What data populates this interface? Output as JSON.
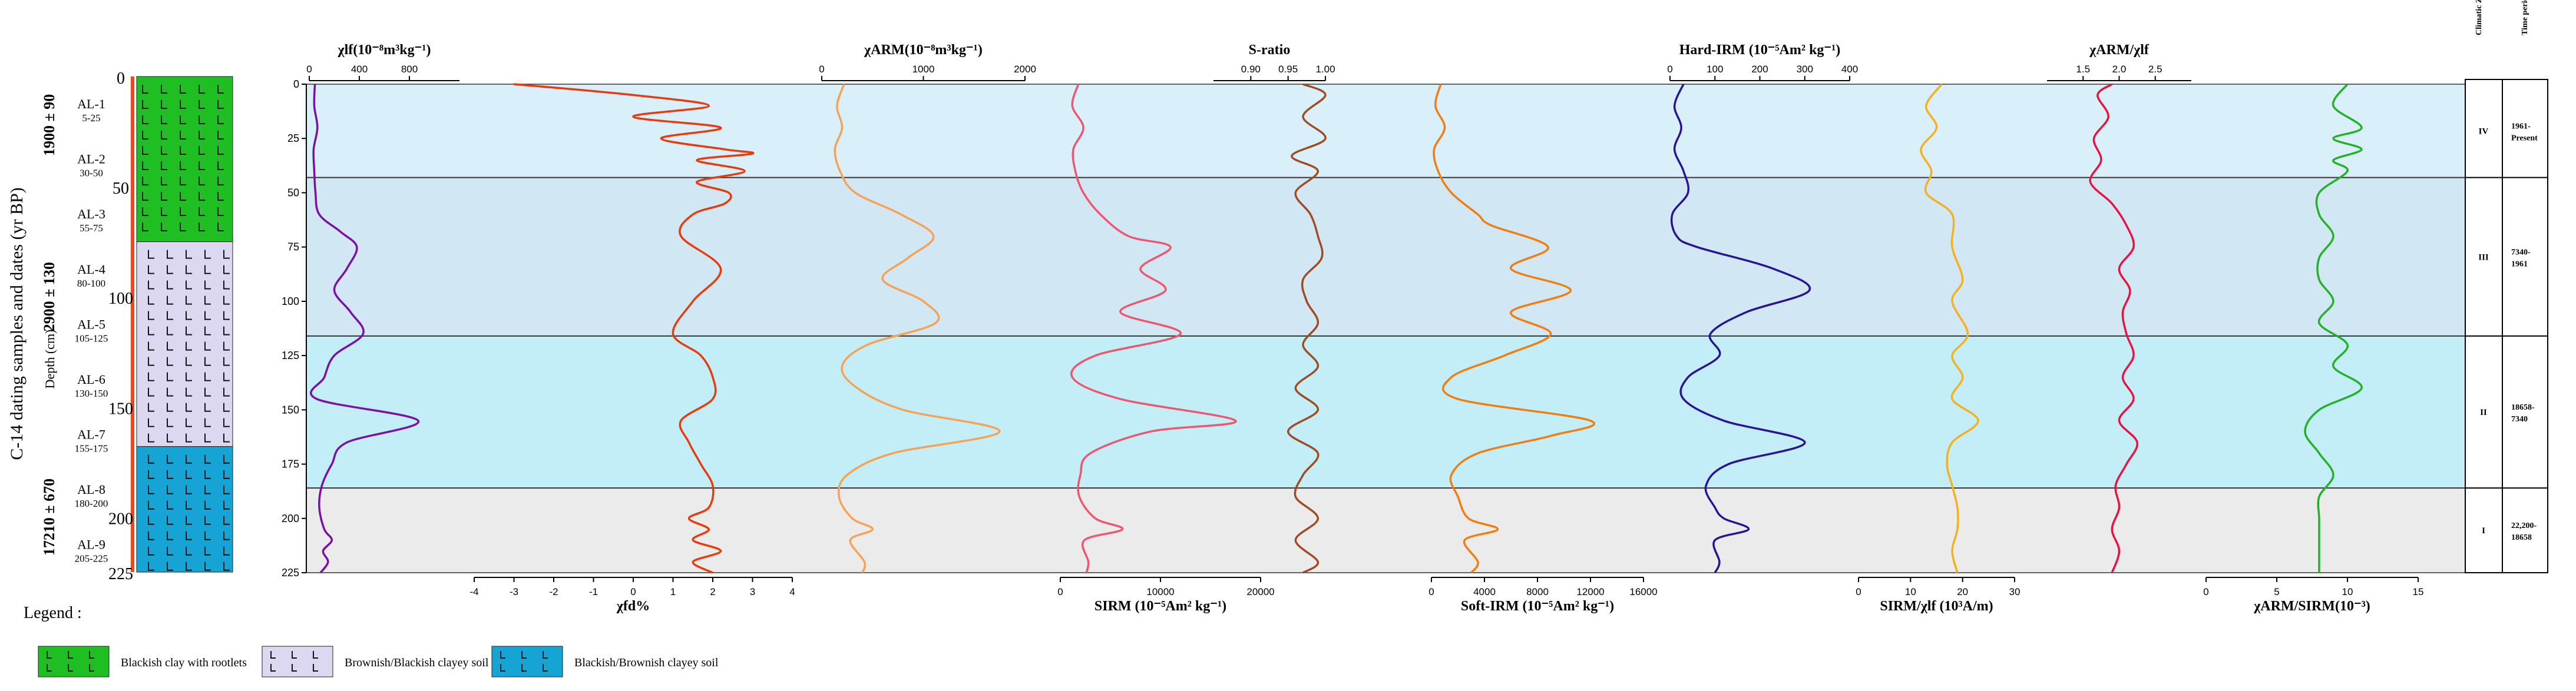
{
  "depth_column": {
    "title": "C-14 dating samples and dates (yr BP)",
    "depth_label": "Depth (cm)",
    "depth_ticks": [
      "0",
      "50",
      "100",
      "150",
      "200",
      "225"
    ],
    "dates": [
      "1900 ± 90",
      "2900 ± 130",
      "17210 ± 670"
    ],
    "samples": [
      {
        "id": "AL-1",
        "range": "5-25"
      },
      {
        "id": "AL-2",
        "range": "30-50"
      },
      {
        "id": "AL-3",
        "range": "55-75"
      },
      {
        "id": "AL-4",
        "range": "80-100"
      },
      {
        "id": "AL-5",
        "range": "105-125"
      },
      {
        "id": "AL-6",
        "range": "130-150"
      },
      {
        "id": "AL-7",
        "range": "155-175"
      },
      {
        "id": "AL-8",
        "range": "180-200"
      },
      {
        "id": "AL-9",
        "range": "205-225"
      }
    ]
  },
  "legend": {
    "title": "Legend :",
    "items": [
      {
        "label": "Blackish clay with rootlets",
        "color": "#1fbf24"
      },
      {
        "label": "Brownish/Blackish clayey soil",
        "color": "#dcd8f2"
      },
      {
        "label": "Blackish/Brownish clayey soil",
        "color": "#16a4d4"
      }
    ]
  },
  "zones_table": {
    "headers": [
      "Climatic Zones",
      "Time period"
    ],
    "rows": [
      {
        "zone": "IV",
        "period": "1961-Present"
      },
      {
        "zone": "III",
        "period": "7340-1961"
      },
      {
        "zone": "II",
        "period": "18658-7340"
      },
      {
        "zone": "I",
        "period": "22,200-18658"
      }
    ]
  },
  "zone_colors": [
    "#d9effa",
    "#d1e7f3",
    "#c3edf7",
    "#ebebeb"
  ],
  "chart_data": {
    "type": "line",
    "y_axis": {
      "label": "Depth (cm)",
      "ticks": [
        0,
        25,
        50,
        75,
        100,
        125,
        150,
        175,
        200,
        225
      ],
      "range": [
        0,
        225
      ],
      "inverted": true
    },
    "zone_boundaries": [
      0,
      43,
      116,
      186,
      225
    ],
    "series": [
      {
        "name": "χlf",
        "label": "χlf(10⁻⁸m³kg⁻¹)",
        "axis": "top",
        "ticks": [
          "0",
          "400",
          "800"
        ],
        "range": [
          0,
          1200
        ],
        "color": "#7b0fa6",
        "depths": [
          0,
          10,
          20,
          30,
          40,
          50,
          60,
          68,
          75,
          85,
          95,
          105,
          115,
          125,
          135,
          145,
          155,
          165,
          175,
          185,
          195,
          205,
          210,
          215,
          220,
          225
        ],
        "values": [
          45,
          40,
          65,
          35,
          40,
          50,
          80,
          250,
          380,
          300,
          200,
          330,
          430,
          200,
          120,
          60,
          870,
          300,
          180,
          100,
          80,
          120,
          180,
          110,
          150,
          90
        ]
      },
      {
        "name": "χfd%",
        "label": "χfd%",
        "axis": "bottom",
        "ticks": [
          "-4",
          "-3",
          "-2",
          "-1",
          "0",
          "1",
          "2",
          "3",
          "4"
        ],
        "range": [
          -4,
          4
        ],
        "color": "#e83a0a",
        "depths": [
          0,
          5,
          10,
          15,
          20,
          25,
          30,
          32,
          35,
          40,
          45,
          50,
          55,
          60,
          70,
          85,
          100,
          115,
          125,
          135,
          145,
          155,
          165,
          175,
          185,
          195,
          200,
          205,
          210,
          215,
          220,
          225
        ],
        "values": [
          -3,
          0,
          1.9,
          0,
          2.2,
          0.7,
          2.3,
          3,
          1.6,
          2.8,
          1.6,
          2.4,
          2.3,
          1.5,
          1.2,
          2.2,
          1.5,
          1,
          1.7,
          2,
          2,
          1.2,
          1.4,
          1.7,
          2,
          1.9,
          1.4,
          1.9,
          1.5,
          2.2,
          1.5,
          2
        ]
      },
      {
        "name": "χARM",
        "label": "χARM(10⁻⁸m³kg⁻¹)",
        "axis": "top",
        "ticks": [
          "0",
          "1000",
          "2000"
        ],
        "range": [
          0,
          2000
        ],
        "color": "#f7a253",
        "depths": [
          0,
          10,
          20,
          30,
          40,
          50,
          60,
          70,
          80,
          90,
          100,
          110,
          120,
          130,
          140,
          150,
          160,
          170,
          180,
          190,
          200,
          205,
          210,
          220,
          225
        ],
        "values": [
          220,
          150,
          200,
          130,
          180,
          330,
          780,
          1100,
          850,
          600,
          1000,
          1120,
          450,
          200,
          350,
          800,
          1750,
          700,
          250,
          170,
          300,
          500,
          280,
          420,
          400
        ]
      },
      {
        "name": "SIRM",
        "label": "SIRM (10⁻⁵Am² kg⁻¹)",
        "axis": "bottom",
        "ticks": [
          "0",
          "10000",
          "20000"
        ],
        "range": [
          0,
          20000
        ],
        "color": "#f0556e",
        "depths": [
          0,
          10,
          20,
          30,
          40,
          50,
          60,
          70,
          75,
          85,
          95,
          105,
          115,
          125,
          135,
          145,
          155,
          160,
          170,
          180,
          190,
          200,
          205,
          210,
          220,
          225
        ],
        "values": [
          1800,
          1200,
          2300,
          1300,
          1500,
          2300,
          4000,
          6800,
          11000,
          8000,
          10500,
          6000,
          12000,
          3500,
          1200,
          6000,
          17500,
          9000,
          3000,
          2000,
          1900,
          3500,
          6200,
          2400,
          2800,
          2600
        ]
      },
      {
        "name": "S-ratio",
        "label": "S-ratio",
        "axis": "top",
        "ticks": [
          "0.90",
          "0.95",
          "1.00"
        ],
        "range": [
          0.85,
          1.0
        ],
        "color": "#a14b25",
        "depths": [
          0,
          5,
          15,
          25,
          33,
          40,
          50,
          60,
          70,
          80,
          90,
          100,
          110,
          120,
          130,
          140,
          150,
          160,
          170,
          180,
          190,
          200,
          210,
          220,
          225
        ],
        "values": [
          0.97,
          1.0,
          0.97,
          1.0,
          0.955,
          0.99,
          0.96,
          0.98,
          0.99,
          0.995,
          0.97,
          0.975,
          0.99,
          0.97,
          0.99,
          0.96,
          0.99,
          0.95,
          0.99,
          0.97,
          0.96,
          0.99,
          0.96,
          0.99,
          0.97
        ]
      },
      {
        "name": "Soft-IRM",
        "label": "Soft-IRM (10⁻⁵Am² kg⁻¹)",
        "axis": "bottom",
        "ticks": [
          "0",
          "4000",
          "8000",
          "12000",
          "16000"
        ],
        "range": [
          0,
          16000
        ],
        "color": "#f27d0c",
        "depths": [
          0,
          10,
          20,
          30,
          40,
          50,
          60,
          65,
          75,
          85,
          95,
          105,
          115,
          125,
          135,
          145,
          155,
          162,
          170,
          180,
          190,
          200,
          205,
          210,
          220,
          225
        ],
        "values": [
          700,
          300,
          1000,
          200,
          500,
          1500,
          3500,
          4500,
          8800,
          6000,
          10500,
          6000,
          9000,
          5500,
          1500,
          2000,
          12000,
          9000,
          3500,
          1500,
          2000,
          2800,
          5000,
          2500,
          3500,
          3000
        ]
      },
      {
        "name": "Hard-IRM",
        "label": "Hard-IRM (10⁻⁵Am² kg⁻¹)",
        "axis": "top",
        "ticks": [
          "0",
          "100",
          "200",
          "300",
          "400"
        ],
        "range": [
          0,
          400
        ],
        "color": "#2a1495",
        "depths": [
          0,
          10,
          20,
          30,
          40,
          50,
          60,
          70,
          75,
          85,
          95,
          105,
          115,
          125,
          135,
          145,
          155,
          165,
          175,
          185,
          195,
          200,
          205,
          210,
          220,
          225
        ],
        "values": [
          30,
          10,
          25,
          10,
          30,
          40,
          5,
          15,
          60,
          230,
          310,
          170,
          90,
          110,
          40,
          30,
          120,
          300,
          130,
          80,
          100,
          120,
          175,
          100,
          110,
          100
        ]
      },
      {
        "name": "SIRM/χlf",
        "label": "SIRM/χlf (10³A/m)",
        "axis": "bottom",
        "ticks": [
          "0",
          "10",
          "20",
          "30"
        ],
        "range": [
          0,
          30
        ],
        "color": "#f5b01c",
        "depths": [
          0,
          10,
          20,
          30,
          40,
          50,
          60,
          75,
          90,
          100,
          115,
          125,
          135,
          145,
          155,
          165,
          175,
          185,
          195,
          205,
          215,
          225
        ],
        "values": [
          16,
          13,
          15,
          12,
          14,
          13,
          18,
          18,
          20,
          18,
          21,
          18,
          20,
          18,
          23,
          18,
          17,
          18,
          19,
          19,
          18,
          19
        ]
      },
      {
        "name": "χARM/χlf",
        "label": "χARM/χlf",
        "axis": "top",
        "ticks": [
          "1.5",
          "2.0",
          "2.5"
        ],
        "range": [
          1.0,
          3.0
        ],
        "color": "#e8123f",
        "depths": [
          0,
          5,
          15,
          25,
          35,
          45,
          55,
          65,
          75,
          85,
          95,
          105,
          115,
          125,
          135,
          145,
          155,
          165,
          175,
          185,
          195,
          205,
          215,
          225
        ],
        "values": [
          1.9,
          1.7,
          1.85,
          1.65,
          1.75,
          1.6,
          1.9,
          2.1,
          2.2,
          2.0,
          2.15,
          2.05,
          2.1,
          2.2,
          2.05,
          2.2,
          2.0,
          2.25,
          2.1,
          1.95,
          2.0,
          1.9,
          2.0,
          1.9
        ]
      },
      {
        "name": "χARM/SIRM",
        "label": "χARM/SIRM(10⁻³)",
        "axis": "bottom",
        "ticks": [
          "0",
          "5",
          "10",
          "15"
        ],
        "range": [
          0,
          15
        ],
        "color": "#23b226",
        "depths": [
          0,
          10,
          20,
          25,
          30,
          35,
          40,
          50,
          60,
          70,
          80,
          90,
          100,
          110,
          120,
          130,
          140,
          150,
          160,
          170,
          180,
          190,
          200,
          210,
          220,
          225
        ],
        "values": [
          10,
          9,
          11,
          9,
          11,
          9,
          10,
          8,
          8,
          9,
          8,
          8,
          9,
          8,
          10,
          9,
          11,
          8,
          7,
          8,
          9,
          8,
          8,
          8,
          8,
          8
        ]
      }
    ]
  }
}
